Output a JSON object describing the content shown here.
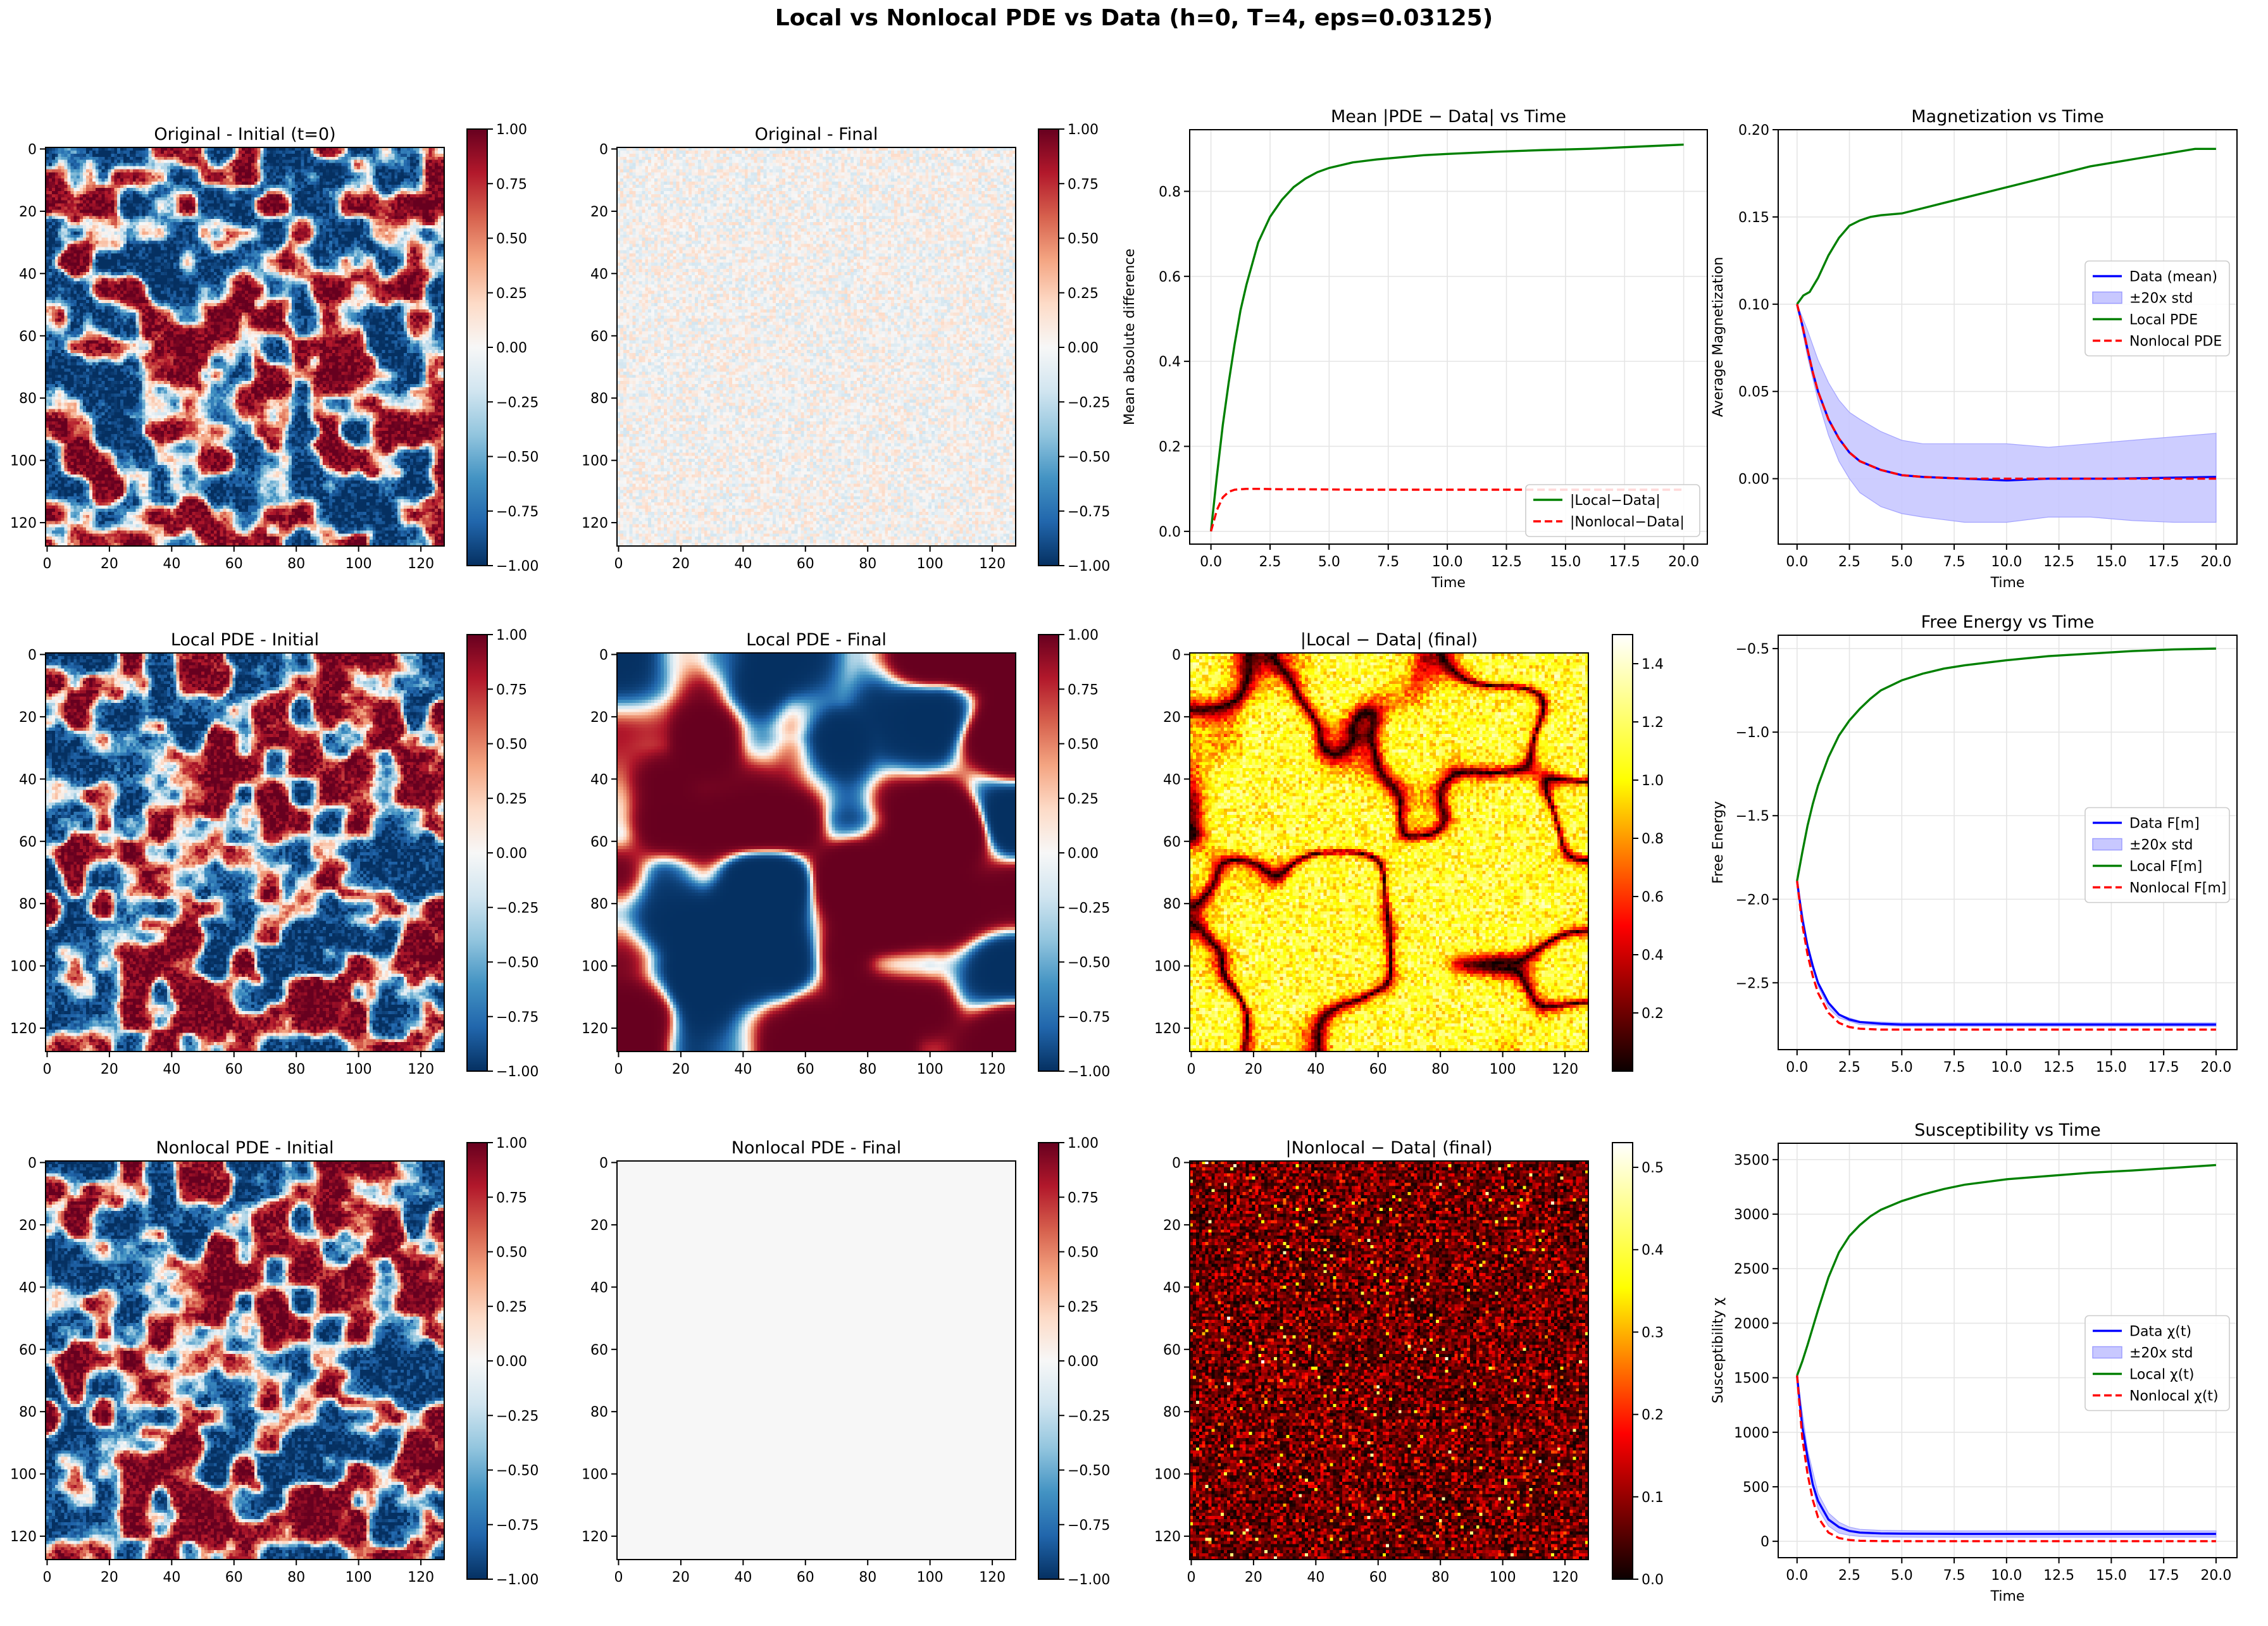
{
  "figure": {
    "title": "Local vs Nonlocal PDE vs Data (h=0, T=4, eps=0.03125)"
  },
  "colormaps": {
    "RdBu_r": [
      "#053061",
      "#2166ac",
      "#4393c3",
      "#92c5de",
      "#d1e5f0",
      "#f7f7f7",
      "#fddbc7",
      "#f4a582",
      "#d6604d",
      "#b2182b",
      "#67001f"
    ],
    "hot": [
      "#0b0000",
      "#ff0000",
      "#ffff00",
      "#ffffff"
    ]
  },
  "colors": {
    "data": "#0000ff",
    "band": "#c8c8ff",
    "local": "#008000",
    "nonlocal": "#ff0000",
    "grid": "#e5e5e5"
  },
  "heat_ticks": [
    "0",
    "20",
    "40",
    "60",
    "80",
    "100",
    "120"
  ],
  "rdbu_ticks": [
    "1.00",
    "0.75",
    "0.50",
    "0.25",
    "0.00",
    "−0.25",
    "−0.50",
    "−0.75",
    "−1.00"
  ],
  "chart_data": [
    {
      "type": "heatmap",
      "id": "original-initial",
      "title": "Original - Initial (t=0)",
      "x_range": [
        0,
        127
      ],
      "y_range": [
        0,
        127
      ],
      "colormap": "RdBu_r",
      "clim": [
        -1,
        1
      ],
      "pattern": "domains",
      "seed": 11
    },
    {
      "type": "heatmap",
      "id": "original-final",
      "title": "Original - Final",
      "x_range": [
        0,
        127
      ],
      "y_range": [
        0,
        127
      ],
      "colormap": "RdBu_r",
      "clim": [
        -1,
        1
      ],
      "pattern": "noise",
      "seed": 23
    },
    {
      "type": "line",
      "id": "mean-diff",
      "title": "Mean |PDE − Data| vs Time",
      "xlabel": "Time",
      "ylabel": "Mean absolute difference",
      "xlim": [
        -0.9,
        21.0
      ],
      "ylim": [
        -0.03,
        0.945
      ],
      "xticks": [
        "0.0",
        "2.5",
        "5.0",
        "7.5",
        "10.0",
        "12.5",
        "15.0",
        "17.5",
        "20.0"
      ],
      "yticks": [
        "0.0",
        "0.2",
        "0.4",
        "0.6",
        "0.8"
      ],
      "legend_loc": "lower-right",
      "series": [
        {
          "name": "|Local−Data|",
          "color": "local",
          "dash": false,
          "x": [
            0,
            0.25,
            0.5,
            0.75,
            1,
            1.25,
            1.5,
            1.75,
            2,
            2.5,
            3,
            3.5,
            4,
            4.5,
            5,
            6,
            7,
            8,
            9,
            10,
            12,
            14,
            16,
            18,
            20
          ],
          "y": [
            0,
            0.13,
            0.25,
            0.35,
            0.44,
            0.52,
            0.58,
            0.63,
            0.68,
            0.74,
            0.78,
            0.81,
            0.83,
            0.845,
            0.855,
            0.868,
            0.875,
            0.88,
            0.885,
            0.888,
            0.893,
            0.897,
            0.9,
            0.905,
            0.91
          ]
        },
        {
          "name": "|Nonlocal−Data|",
          "color": "nonlocal",
          "dash": true,
          "x": [
            0,
            0.25,
            0.5,
            0.75,
            1,
            1.5,
            2,
            3,
            4,
            6,
            8,
            10,
            12,
            14,
            16,
            18,
            20
          ],
          "y": [
            0,
            0.05,
            0.08,
            0.093,
            0.098,
            0.1,
            0.1,
            0.099,
            0.099,
            0.098,
            0.098,
            0.098,
            0.098,
            0.098,
            0.098,
            0.098,
            0.098
          ]
        }
      ]
    },
    {
      "type": "line",
      "id": "magnetization",
      "title": "Magnetization vs Time",
      "xlabel": "Time",
      "ylabel": "Average Magnetization",
      "xlim": [
        -0.9,
        21.0
      ],
      "ylim": [
        -0.0375,
        0.2
      ],
      "xticks": [
        "0.0",
        "2.5",
        "5.0",
        "7.5",
        "10.0",
        "12.5",
        "15.0",
        "17.5",
        "20.0"
      ],
      "yticks": [
        "0.00",
        "0.05",
        "0.10",
        "0.15",
        "0.20"
      ],
      "legend_loc": "center-right",
      "band": {
        "name": "±20x std",
        "x": [
          0,
          0.5,
          1,
          1.5,
          2,
          2.5,
          3,
          4,
          5,
          6,
          8,
          10,
          12,
          14,
          16,
          18,
          20
        ],
        "lower": [
          0.1,
          0.07,
          0.045,
          0.025,
          0.01,
          0,
          -0.008,
          -0.016,
          -0.02,
          -0.022,
          -0.025,
          -0.025,
          -0.022,
          -0.022,
          -0.024,
          -0.025,
          -0.025
        ],
        "upper": [
          0.1,
          0.085,
          0.068,
          0.055,
          0.045,
          0.038,
          0.034,
          0.027,
          0.022,
          0.02,
          0.02,
          0.02,
          0.018,
          0.02,
          0.022,
          0.024,
          0.026
        ]
      },
      "series": [
        {
          "name": "Data (mean)",
          "color": "data",
          "dash": false,
          "x": [
            0,
            0.25,
            0.5,
            0.75,
            1,
            1.5,
            2,
            2.5,
            3,
            4,
            5,
            6,
            8,
            10,
            12,
            15,
            20
          ],
          "y": [
            0.1,
            0.088,
            0.074,
            0.061,
            0.05,
            0.034,
            0.023,
            0.015,
            0.01,
            0.005,
            0.002,
            0.001,
            0,
            -0.001,
            0,
            0,
            0.001
          ]
        },
        {
          "name": "±20x std",
          "color": "band",
          "dash": false,
          "legend_only": true,
          "x": [],
          "y": []
        },
        {
          "name": "Local PDE",
          "color": "local",
          "dash": false,
          "x": [
            0,
            0.3,
            0.6,
            1,
            1.5,
            2,
            2.5,
            3,
            3.5,
            4,
            5,
            6,
            7,
            8,
            10,
            12,
            14,
            16,
            18,
            19,
            20
          ],
          "y": [
            0.1,
            0.105,
            0.107,
            0.115,
            0.128,
            0.138,
            0.145,
            0.148,
            0.15,
            0.151,
            0.152,
            0.155,
            0.158,
            0.161,
            0.167,
            0.173,
            0.179,
            0.183,
            0.187,
            0.189,
            0.189
          ]
        },
        {
          "name": "Nonlocal PDE",
          "color": "nonlocal",
          "dash": true,
          "x": [
            0,
            0.25,
            0.5,
            0.75,
            1,
            1.5,
            2,
            2.5,
            3,
            4,
            5,
            6,
            8,
            10,
            12,
            15,
            20
          ],
          "y": [
            0.1,
            0.088,
            0.074,
            0.061,
            0.05,
            0.034,
            0.023,
            0.015,
            0.01,
            0.005,
            0.002,
            0.001,
            0,
            0,
            0,
            0,
            0
          ]
        }
      ]
    },
    {
      "type": "heatmap",
      "id": "local-initial",
      "title": "Local PDE - Initial",
      "x_range": [
        0,
        127
      ],
      "y_range": [
        0,
        127
      ],
      "colormap": "RdBu_r",
      "clim": [
        -1,
        1
      ],
      "pattern": "domains",
      "seed": 31
    },
    {
      "type": "heatmap",
      "id": "local-final",
      "title": "Local PDE - Final",
      "x_range": [
        0,
        127
      ],
      "y_range": [
        0,
        127
      ],
      "colormap": "RdBu_r",
      "clim": [
        -1,
        1
      ],
      "pattern": "coarse",
      "seed": 47
    },
    {
      "type": "heatmap",
      "id": "local-diff",
      "title": "|Local − Data| (final)",
      "x_range": [
        0,
        127
      ],
      "y_range": [
        0,
        127
      ],
      "colormap": "hot",
      "clim": [
        0,
        1.5
      ],
      "colorbar_ticks": [
        "1.4",
        "1.2",
        "1.0",
        "0.8",
        "0.6",
        "0.4",
        "0.2"
      ],
      "colorbar_tick_values": [
        1.4,
        1.2,
        1.0,
        0.8,
        0.6,
        0.4,
        0.2
      ],
      "pattern": "abs-coarse",
      "seed": 47
    },
    {
      "type": "line",
      "id": "free-energy",
      "title": "Free Energy vs Time",
      "xlabel": "",
      "ylabel": "Free Energy",
      "xlim": [
        -0.9,
        21.0
      ],
      "ylim": [
        -2.9,
        -0.42
      ],
      "xticks": [
        "0.0",
        "2.5",
        "5.0",
        "7.5",
        "10.0",
        "12.5",
        "15.0",
        "17.5",
        "20.0"
      ],
      "yticks": [
        "−2.5",
        "−2.0",
        "−1.5",
        "−1.0",
        "−0.5"
      ],
      "ytick_values": [
        -2.5,
        -2.0,
        -1.5,
        -1.0,
        -0.5
      ],
      "legend_loc": "center-right",
      "band": {
        "name": "±20x std",
        "x": [
          0,
          0.5,
          1,
          1.5,
          2,
          3,
          5,
          20
        ],
        "lower": [
          -1.89,
          -2.3,
          -2.52,
          -2.65,
          -2.71,
          -2.75,
          -2.76,
          -2.76
        ],
        "upper": [
          -1.89,
          -2.26,
          -2.5,
          -2.62,
          -2.69,
          -2.73,
          -2.74,
          -2.74
        ]
      },
      "series": [
        {
          "name": "Data F[m]",
          "color": "data",
          "dash": false,
          "x": [
            0,
            0.25,
            0.5,
            0.75,
            1,
            1.5,
            2,
            2.5,
            3,
            4,
            5,
            8,
            12,
            20
          ],
          "y": [
            -1.89,
            -2.12,
            -2.28,
            -2.4,
            -2.5,
            -2.62,
            -2.69,
            -2.72,
            -2.735,
            -2.745,
            -2.75,
            -2.75,
            -2.75,
            -2.75
          ]
        },
        {
          "name": "±20x std",
          "color": "band",
          "dash": false,
          "legend_only": true,
          "x": [],
          "y": []
        },
        {
          "name": "Local F[m]",
          "color": "local",
          "dash": false,
          "x": [
            0,
            0.25,
            0.5,
            0.75,
            1,
            1.5,
            2,
            2.5,
            3,
            3.5,
            4,
            5,
            6,
            7,
            8,
            10,
            12,
            14,
            16,
            18,
            20
          ],
          "y": [
            -1.89,
            -1.72,
            -1.56,
            -1.43,
            -1.32,
            -1.15,
            -1.02,
            -0.93,
            -0.86,
            -0.8,
            -0.75,
            -0.69,
            -0.65,
            -0.62,
            -0.6,
            -0.57,
            -0.545,
            -0.53,
            -0.515,
            -0.505,
            -0.5
          ]
        },
        {
          "name": "Nonlocal F[m]",
          "color": "nonlocal",
          "dash": true,
          "x": [
            0,
            0.25,
            0.5,
            0.75,
            1,
            1.5,
            2,
            2.5,
            3,
            4,
            5,
            8,
            12,
            20
          ],
          "y": [
            -1.89,
            -2.15,
            -2.33,
            -2.46,
            -2.56,
            -2.68,
            -2.74,
            -2.765,
            -2.775,
            -2.78,
            -2.78,
            -2.78,
            -2.78,
            -2.78
          ]
        }
      ]
    },
    {
      "type": "heatmap",
      "id": "nonlocal-initial",
      "title": "Nonlocal PDE - Initial",
      "x_range": [
        0,
        127
      ],
      "y_range": [
        0,
        127
      ],
      "colormap": "RdBu_r",
      "clim": [
        -1,
        1
      ],
      "pattern": "domains",
      "seed": 31
    },
    {
      "type": "heatmap",
      "id": "nonlocal-final",
      "title": "Nonlocal PDE - Final",
      "x_range": [
        0,
        127
      ],
      "y_range": [
        0,
        127
      ],
      "colormap": "RdBu_r",
      "clim": [
        -1,
        1
      ],
      "pattern": "flat",
      "seed": 0
    },
    {
      "type": "heatmap",
      "id": "nonlocal-diff",
      "title": "|Nonlocal − Data| (final)",
      "x_range": [
        0,
        127
      ],
      "y_range": [
        0,
        127
      ],
      "colormap": "hot",
      "clim": [
        0,
        0.53
      ],
      "colorbar_ticks": [
        "0.5",
        "0.4",
        "0.3",
        "0.2",
        "0.1",
        "0.0"
      ],
      "colorbar_tick_values": [
        0.5,
        0.4,
        0.3,
        0.2,
        0.1,
        0.0
      ],
      "pattern": "abs-noise",
      "seed": 53
    },
    {
      "type": "line",
      "id": "susceptibility",
      "title": "Susceptibility vs Time",
      "xlabel": "Time",
      "ylabel": "Susceptibility χ",
      "xlim": [
        -0.9,
        21.0
      ],
      "ylim": [
        -150,
        3650
      ],
      "xticks": [
        "0.0",
        "2.5",
        "5.0",
        "7.5",
        "10.0",
        "12.5",
        "15.0",
        "17.5",
        "20.0"
      ],
      "yticks": [
        "0",
        "500",
        "1000",
        "1500",
        "2000",
        "2500",
        "3000",
        "3500"
      ],
      "ytick_values": [
        0,
        500,
        1000,
        1500,
        2000,
        2500,
        3000,
        3500
      ],
      "legend_loc": "center-right",
      "band": {
        "name": "±20x std",
        "x": [
          0,
          0.5,
          1,
          1.5,
          2,
          2.5,
          3,
          4,
          6,
          10,
          20
        ],
        "lower": [
          1520,
          700,
          300,
          140,
          75,
          55,
          45,
          40,
          38,
          38,
          38
        ],
        "upper": [
          1520,
          840,
          440,
          260,
          175,
          130,
          110,
          100,
          95,
          95,
          95
        ]
      },
      "series": [
        {
          "name": "Data χ(t)",
          "color": "data",
          "dash": false,
          "x": [
            0,
            0.25,
            0.5,
            0.75,
            1,
            1.5,
            2,
            2.5,
            3,
            4,
            5,
            8,
            12,
            20
          ],
          "y": [
            1520,
            1050,
            770,
            520,
            370,
            200,
            130,
            95,
            80,
            72,
            70,
            68,
            68,
            68
          ]
        },
        {
          "name": "±20x std",
          "color": "band",
          "dash": false,
          "legend_only": true,
          "x": [],
          "y": []
        },
        {
          "name": "Local χ(t)",
          "color": "local",
          "dash": false,
          "x": [
            0,
            0.25,
            0.5,
            0.75,
            1,
            1.5,
            2,
            2.5,
            3,
            3.5,
            4,
            5,
            6,
            7,
            8,
            10,
            12,
            14,
            16,
            18,
            20
          ],
          "y": [
            1520,
            1650,
            1800,
            1960,
            2120,
            2420,
            2650,
            2800,
            2900,
            2980,
            3040,
            3120,
            3180,
            3230,
            3270,
            3320,
            3350,
            3380,
            3400,
            3425,
            3450
          ]
        },
        {
          "name": "Nonlocal χ(t)",
          "color": "nonlocal",
          "dash": true,
          "x": [
            0,
            0.25,
            0.5,
            0.75,
            1,
            1.5,
            2,
            2.5,
            3,
            4,
            5,
            20
          ],
          "y": [
            1520,
            950,
            620,
            380,
            220,
            80,
            30,
            12,
            5,
            2,
            1,
            1
          ]
        }
      ]
    }
  ]
}
